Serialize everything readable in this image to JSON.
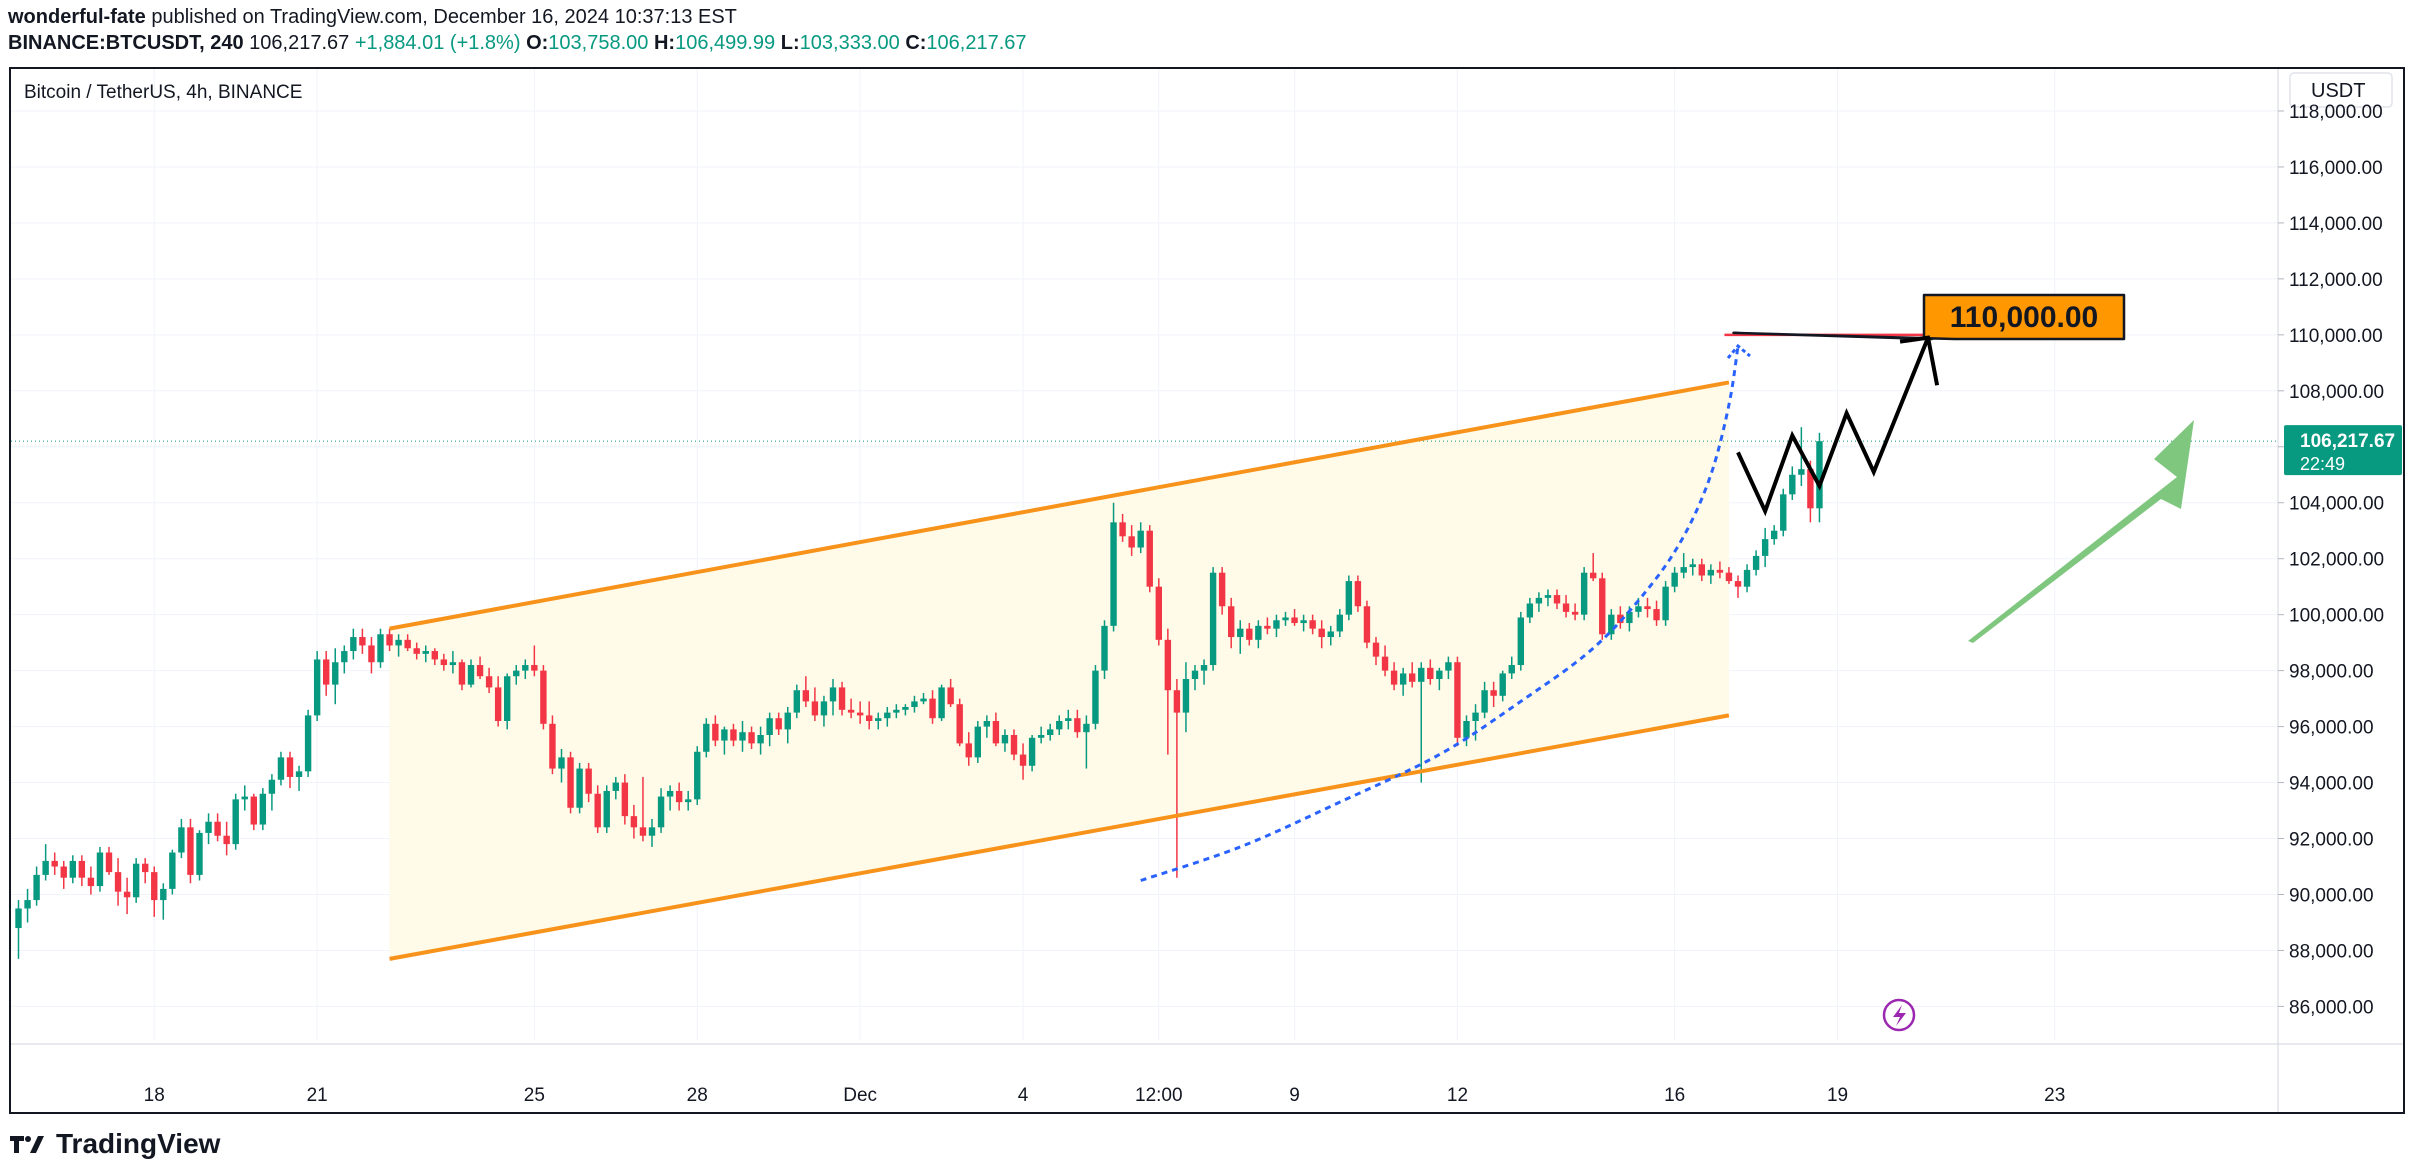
{
  "header": {
    "author": "wonderful-fate",
    "published_text": " published on TradingView.com, December 16, 2024 10:37:13 EST",
    "symbol": "BINANCE:BTCUSDT, 240",
    "last": "106,217.67",
    "change": "+1,884.01 (+1.8%)",
    "o_label": "O:",
    "o_value": "103,758.00",
    "h_label": "H:",
    "h_value": "106,499.99",
    "l_label": "L:",
    "l_value": "103,333.00",
    "c_label": "C:",
    "c_value": "106,217.67"
  },
  "footer": {
    "brand": "TradingView"
  },
  "colors": {
    "up": "#089981",
    "down": "#f23645",
    "channel": "#f7931a",
    "channel_fill": "#fffbe8",
    "target_line": "#f23645",
    "target_label_bg": "#ff9800",
    "curve": "#2962ff",
    "arrow_green": "#7fc77f"
  },
  "chart_data": {
    "type": "candlestick",
    "title": "Bitcoin / TetherUS, 4h, BINANCE",
    "currency": "USDT",
    "ylim": [
      84800,
      119500
    ],
    "y_ticks": [
      "118,000.00",
      "116,000.00",
      "114,000.00",
      "112,000.00",
      "110,000.00",
      "108,000.00",
      "106,000.00",
      "104,000.00",
      "102,000.00",
      "100,000.00",
      "98,000.00",
      "96,000.00",
      "94,000.00",
      "92,000.00",
      "90,000.00",
      "88,000.00",
      "86,000.00"
    ],
    "x_ticks": [
      {
        "label": "18",
        "bar": 15
      },
      {
        "label": "21",
        "bar": 33
      },
      {
        "label": "25",
        "bar": 57
      },
      {
        "label": "28",
        "bar": 75
      },
      {
        "label": "Dec",
        "bar": 93
      },
      {
        "label": "4",
        "bar": 111
      },
      {
        "label": "12:00",
        "bar": 126
      },
      {
        "label": "9",
        "bar": 141
      },
      {
        "label": "12",
        "bar": 159
      },
      {
        "label": "16",
        "bar": 183
      },
      {
        "label": "19",
        "bar": 201
      },
      {
        "label": "23",
        "bar": 225
      }
    ],
    "last_price_label": "106,217.67",
    "countdown": "22:49",
    "target_label": "110,000.00",
    "target_price": 110000,
    "channel_upper": [
      [
        41,
        99500
      ],
      [
        189,
        108300
      ]
    ],
    "channel_lower": [
      [
        41,
        87700
      ],
      [
        189,
        96400
      ]
    ],
    "curve_points": [
      [
        124,
        90500
      ],
      [
        135,
        91700
      ],
      [
        146,
        93300
      ],
      [
        157,
        95000
      ],
      [
        166,
        96900
      ],
      [
        174,
        98800
      ],
      [
        180,
        100900
      ],
      [
        184,
        102800
      ],
      [
        187,
        105000
      ],
      [
        189,
        107500
      ],
      [
        190,
        109600
      ]
    ],
    "zigzag": [
      [
        190,
        105800
      ],
      [
        193,
        103700
      ],
      [
        196,
        106400
      ],
      [
        199,
        104600
      ],
      [
        202,
        107200
      ],
      [
        205,
        105100
      ],
      [
        211,
        109900
      ]
    ],
    "zigzag_head": [
      [
        211,
        109900
      ],
      [
        212,
        108200
      ]
    ],
    "candles": [
      [
        88800,
        89800,
        87700,
        89500
      ],
      [
        89500,
        90200,
        89000,
        89800
      ],
      [
        89800,
        91000,
        89600,
        90700
      ],
      [
        90700,
        91800,
        90500,
        91200
      ],
      [
        91200,
        91500,
        90700,
        91000
      ],
      [
        91000,
        91200,
        90200,
        90600
      ],
      [
        90600,
        91400,
        90400,
        91200
      ],
      [
        91200,
        91400,
        90300,
        90600
      ],
      [
        90600,
        91000,
        90000,
        90300
      ],
      [
        90300,
        91700,
        90100,
        91500
      ],
      [
        91500,
        91700,
        90700,
        90800
      ],
      [
        90800,
        91300,
        89600,
        90100
      ],
      [
        90100,
        90600,
        89300,
        89900
      ],
      [
        89900,
        91300,
        89700,
        91100
      ],
      [
        91100,
        91300,
        90400,
        90800
      ],
      [
        90800,
        91000,
        89200,
        89800
      ],
      [
        89800,
        90400,
        89100,
        90200
      ],
      [
        90200,
        91600,
        90000,
        91500
      ],
      [
        91500,
        92700,
        91300,
        92400
      ],
      [
        92400,
        92700,
        90400,
        90700
      ],
      [
        90700,
        92300,
        90500,
        92200
      ],
      [
        92200,
        92900,
        91800,
        92600
      ],
      [
        92600,
        92900,
        91900,
        92100
      ],
      [
        92100,
        92600,
        91400,
        91800
      ],
      [
        91800,
        93600,
        91600,
        93400
      ],
      [
        93400,
        93900,
        93000,
        93500
      ],
      [
        93500,
        93600,
        92300,
        92500
      ],
      [
        92500,
        93800,
        92300,
        93600
      ],
      [
        93600,
        94300,
        93000,
        94100
      ],
      [
        94100,
        95100,
        93900,
        94900
      ],
      [
        94900,
        95100,
        93800,
        94200
      ],
      [
        94200,
        94600,
        93700,
        94400
      ],
      [
        94400,
        96600,
        94200,
        96400
      ],
      [
        96400,
        98700,
        96200,
        98400
      ],
      [
        98400,
        98700,
        97100,
        97500
      ],
      [
        97500,
        98800,
        96800,
        98300
      ],
      [
        98300,
        98900,
        97900,
        98700
      ],
      [
        98700,
        99500,
        98400,
        99200
      ],
      [
        99200,
        99500,
        98600,
        98900
      ],
      [
        98900,
        99200,
        97900,
        98300
      ],
      [
        98300,
        99500,
        98100,
        99300
      ],
      [
        99300,
        99500,
        98700,
        98900
      ],
      [
        98900,
        99300,
        98500,
        99100
      ],
      [
        99100,
        99300,
        98700,
        98800
      ],
      [
        98800,
        99000,
        98400,
        98600
      ],
      [
        98600,
        98900,
        98300,
        98700
      ],
      [
        98700,
        98800,
        98200,
        98400
      ],
      [
        98400,
        98600,
        98000,
        98200
      ],
      [
        98200,
        98700,
        97900,
        98300
      ],
      [
        98300,
        98400,
        97300,
        97500
      ],
      [
        97500,
        98400,
        97400,
        98200
      ],
      [
        98200,
        98500,
        97700,
        97800
      ],
      [
        97800,
        98100,
        97200,
        97400
      ],
      [
        97400,
        97800,
        96000,
        96200
      ],
      [
        96200,
        97900,
        95900,
        97800
      ],
      [
        97800,
        98200,
        97500,
        98000
      ],
      [
        98000,
        98400,
        97700,
        98200
      ],
      [
        98200,
        98900,
        97800,
        98000
      ],
      [
        98000,
        98200,
        95900,
        96100
      ],
      [
        96100,
        96400,
        94300,
        94500
      ],
      [
        94500,
        95200,
        94000,
        94900
      ],
      [
        94900,
        95100,
        92900,
        93100
      ],
      [
        93100,
        94700,
        92900,
        94500
      ],
      [
        94500,
        94700,
        93300,
        93600
      ],
      [
        93600,
        93900,
        92200,
        92400
      ],
      [
        92400,
        93900,
        92200,
        93700
      ],
      [
        93700,
        94200,
        93400,
        94000
      ],
      [
        94000,
        94300,
        92500,
        92800
      ],
      [
        92800,
        93200,
        92000,
        92400
      ],
      [
        92400,
        94200,
        91900,
        92100
      ],
      [
        92100,
        92700,
        91700,
        92400
      ],
      [
        92400,
        93800,
        92200,
        93500
      ],
      [
        93500,
        93900,
        93000,
        93700
      ],
      [
        93700,
        94000,
        93000,
        93300
      ],
      [
        93300,
        93700,
        93000,
        93400
      ],
      [
        93400,
        95300,
        93200,
        95100
      ],
      [
        95100,
        96300,
        94900,
        96100
      ],
      [
        96100,
        96400,
        95300,
        95500
      ],
      [
        95500,
        96000,
        95000,
        95900
      ],
      [
        95900,
        96100,
        95300,
        95500
      ],
      [
        95500,
        96200,
        95100,
        95800
      ],
      [
        95800,
        96000,
        95200,
        95400
      ],
      [
        95400,
        96000,
        95000,
        95700
      ],
      [
        95700,
        96500,
        95300,
        96300
      ],
      [
        96300,
        96500,
        95700,
        95900
      ],
      [
        95900,
        96700,
        95400,
        96500
      ],
      [
        96500,
        97500,
        96300,
        97300
      ],
      [
        97300,
        97800,
        96700,
        96900
      ],
      [
        96900,
        97400,
        96200,
        96400
      ],
      [
        96400,
        97100,
        96000,
        96900
      ],
      [
        96900,
        97700,
        96400,
        97400
      ],
      [
        97400,
        97600,
        96400,
        96600
      ],
      [
        96600,
        97000,
        96300,
        96500
      ],
      [
        96500,
        96900,
        96100,
        96400
      ],
      [
        96400,
        96900,
        95900,
        96200
      ],
      [
        96200,
        96500,
        95900,
        96300
      ],
      [
        96300,
        96700,
        96000,
        96500
      ],
      [
        96500,
        96800,
        96300,
        96600
      ],
      [
        96600,
        96800,
        96400,
        96700
      ],
      [
        96700,
        97100,
        96500,
        96900
      ],
      [
        96900,
        97200,
        96800,
        97000
      ],
      [
        97000,
        97300,
        96100,
        96300
      ],
      [
        96300,
        97500,
        96200,
        97400
      ],
      [
        97400,
        97700,
        96700,
        96800
      ],
      [
        96800,
        97000,
        95300,
        95400
      ],
      [
        95400,
        95800,
        94600,
        94900
      ],
      [
        94900,
        96200,
        94700,
        96000
      ],
      [
        96000,
        96400,
        95600,
        96200
      ],
      [
        96200,
        96500,
        95300,
        95400
      ],
      [
        95400,
        95900,
        95100,
        95700
      ],
      [
        95700,
        95900,
        94800,
        95000
      ],
      [
        95000,
        95400,
        94100,
        94600
      ],
      [
        94600,
        95700,
        94400,
        95600
      ],
      [
        95600,
        96000,
        95400,
        95700
      ],
      [
        95700,
        96100,
        95500,
        95900
      ],
      [
        95900,
        96400,
        95700,
        96200
      ],
      [
        96200,
        96600,
        95900,
        96300
      ],
      [
        96300,
        96600,
        95600,
        95800
      ],
      [
        95800,
        96400,
        94500,
        96100
      ],
      [
        96100,
        98200,
        95900,
        98000
      ],
      [
        98000,
        99800,
        97700,
        99600
      ],
      [
        99600,
        104000,
        99400,
        103300
      ],
      [
        103300,
        103600,
        102600,
        102800
      ],
      [
        102800,
        103200,
        102100,
        102400
      ],
      [
        102400,
        103300,
        102200,
        103000
      ],
      [
        103000,
        103200,
        100800,
        101000
      ],
      [
        101000,
        101300,
        98900,
        99100
      ],
      [
        99100,
        99500,
        95000,
        97300
      ],
      [
        97300,
        97700,
        90600,
        96500
      ],
      [
        96500,
        98300,
        95800,
        97700
      ],
      [
        97700,
        98200,
        97300,
        98000
      ],
      [
        98000,
        98400,
        97500,
        98200
      ],
      [
        98200,
        101700,
        98000,
        101500
      ],
      [
        101500,
        101700,
        100000,
        100300
      ],
      [
        100300,
        100600,
        98800,
        99200
      ],
      [
        99200,
        99800,
        98600,
        99500
      ],
      [
        99500,
        99700,
        98900,
        99100
      ],
      [
        99100,
        99800,
        98800,
        99600
      ],
      [
        99600,
        99900,
        99300,
        99500
      ],
      [
        99500,
        100000,
        99200,
        99800
      ],
      [
        99800,
        100100,
        99600,
        99900
      ],
      [
        99900,
        100200,
        99600,
        99700
      ],
      [
        99700,
        100000,
        99400,
        99800
      ],
      [
        99800,
        100000,
        99300,
        99500
      ],
      [
        99500,
        99800,
        98800,
        99200
      ],
      [
        99200,
        99600,
        98900,
        99400
      ],
      [
        99400,
        100200,
        99200,
        100000
      ],
      [
        100000,
        101400,
        99800,
        101200
      ],
      [
        101200,
        101400,
        100100,
        100300
      ],
      [
        100300,
        100500,
        98800,
        99000
      ],
      [
        99000,
        99200,
        98200,
        98500
      ],
      [
        98500,
        98900,
        97800,
        98000
      ],
      [
        98000,
        98300,
        97300,
        97500
      ],
      [
        97500,
        98100,
        97100,
        97900
      ],
      [
        97900,
        98300,
        97400,
        97600
      ],
      [
        97600,
        98300,
        94000,
        98100
      ],
      [
        98100,
        98400,
        97500,
        97700
      ],
      [
        97700,
        98100,
        97300,
        98000
      ],
      [
        98000,
        98500,
        97700,
        98300
      ],
      [
        98300,
        98500,
        95300,
        95600
      ],
      [
        95600,
        96400,
        95300,
        96200
      ],
      [
        96200,
        96800,
        95500,
        96500
      ],
      [
        96500,
        97600,
        96300,
        97300
      ],
      [
        97300,
        97600,
        96700,
        97100
      ],
      [
        97100,
        98000,
        96900,
        97900
      ],
      [
        97900,
        98500,
        97700,
        98200
      ],
      [
        98200,
        100100,
        98000,
        99900
      ],
      [
        99900,
        100600,
        99700,
        100400
      ],
      [
        100400,
        100800,
        100100,
        100600
      ],
      [
        100600,
        100900,
        100300,
        100700
      ],
      [
        100700,
        100900,
        100200,
        100400
      ],
      [
        100400,
        100700,
        99900,
        100100
      ],
      [
        100100,
        100400,
        99800,
        100000
      ],
      [
        100000,
        101700,
        99800,
        101500
      ],
      [
        101500,
        102200,
        101200,
        101300
      ],
      [
        101300,
        101500,
        99100,
        99300
      ],
      [
        99300,
        100200,
        99100,
        100000
      ],
      [
        100000,
        100300,
        99500,
        99700
      ],
      [
        99700,
        100300,
        99400,
        100100
      ],
      [
        100100,
        100600,
        99900,
        100300
      ],
      [
        100300,
        100600,
        99900,
        100200
      ],
      [
        100200,
        100500,
        99600,
        99800
      ],
      [
        99800,
        101200,
        99600,
        101000
      ],
      [
        101000,
        101700,
        100800,
        101500
      ],
      [
        101500,
        102200,
        101300,
        101700
      ],
      [
        101700,
        102000,
        101400,
        101800
      ],
      [
        101800,
        102000,
        101200,
        101400
      ],
      [
        101400,
        101800,
        101100,
        101600
      ],
      [
        101600,
        101900,
        101300,
        101500
      ],
      [
        101500,
        101700,
        101100,
        101200
      ],
      [
        101200,
        101400,
        100600,
        101000
      ],
      [
        101000,
        101800,
        100800,
        101600
      ],
      [
        101600,
        102300,
        101400,
        102100
      ],
      [
        102100,
        103100,
        101700,
        102700
      ],
      [
        102700,
        103200,
        102500,
        103000
      ],
      [
        103000,
        104500,
        102800,
        104300
      ],
      [
        104300,
        105300,
        104100,
        105000
      ],
      [
        105000,
        106700,
        104600,
        105200
      ],
      [
        105200,
        105500,
        103300,
        103800
      ],
      [
        103800,
        106500,
        103300,
        106200
      ]
    ]
  }
}
